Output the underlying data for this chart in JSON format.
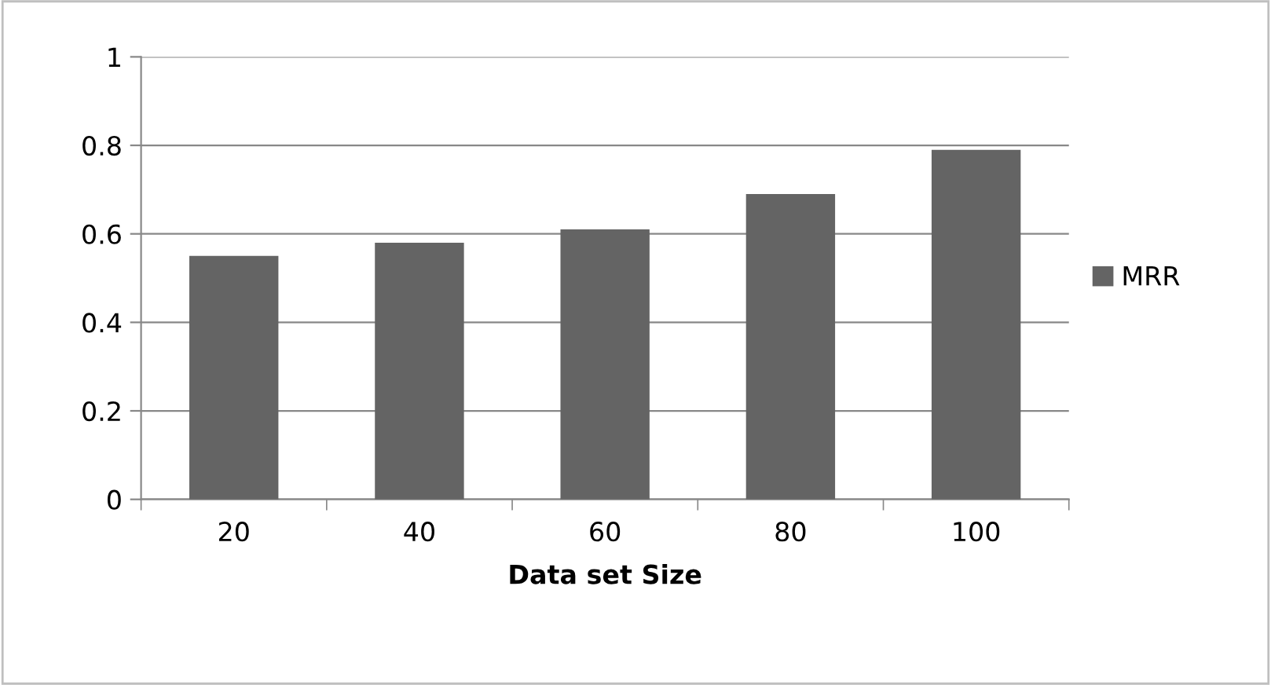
{
  "chart_data": {
    "type": "bar",
    "xlabel": "Data set Size",
    "categories": [
      "20",
      "40",
      "60",
      "80",
      "100"
    ],
    "series": [
      {
        "name": "MRR",
        "color": "#646464",
        "values": [
          0.55,
          0.58,
          0.61,
          0.69,
          0.79
        ]
      }
    ],
    "ylim": [
      0,
      1
    ],
    "yticks": [
      0,
      0.2,
      0.4,
      0.6,
      0.8,
      1
    ],
    "grid": "y",
    "legend": "right"
  }
}
